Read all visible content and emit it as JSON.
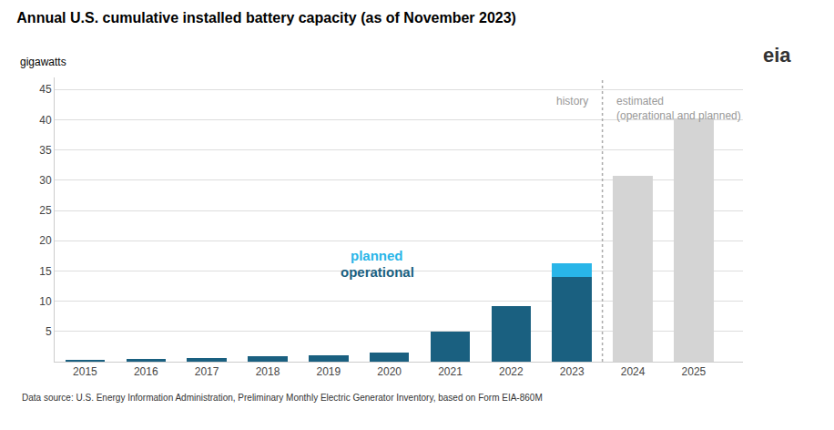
{
  "chart_data": {
    "type": "bar",
    "stacked": true,
    "title": "Annual U.S. cumulative installed battery capacity (as of November 2023)",
    "ylabel": "gigawatts",
    "categories": [
      "2015",
      "2016",
      "2017",
      "2018",
      "2019",
      "2020",
      "2021",
      "2022",
      "2023",
      "2024",
      "2025"
    ],
    "series": [
      {
        "name": "operational",
        "colors": [
          "#1a6080",
          "#1a6080",
          "#1a6080",
          "#1a6080",
          "#1a6080",
          "#1a6080",
          "#1a6080",
          "#1a6080",
          "#1a6080",
          "#d4d4d4",
          "#d4d4d4"
        ],
        "values": [
          0.2,
          0.4,
          0.55,
          0.85,
          1.1,
          1.5,
          5.0,
          9.2,
          14.0,
          30.8,
          40.2
        ]
      },
      {
        "name": "planned",
        "color": "#29b5e8",
        "values": [
          0.0,
          0.0,
          0.0,
          0.0,
          0.0,
          0.0,
          0.0,
          0.0,
          2.3,
          0.0,
          0.0
        ]
      }
    ],
    "ylim": [
      0,
      47
    ],
    "yticks": [
      5,
      10,
      15,
      20,
      25,
      30,
      35,
      40,
      45
    ],
    "grid": true,
    "annotations": [
      "history",
      "estimated\n(operational and planned)",
      "Data source: U.S. Energy Information Administration, Preliminary Monthly Electric Generator Inventory, based on Form EIA-860M",
      "eia"
    ]
  }
}
